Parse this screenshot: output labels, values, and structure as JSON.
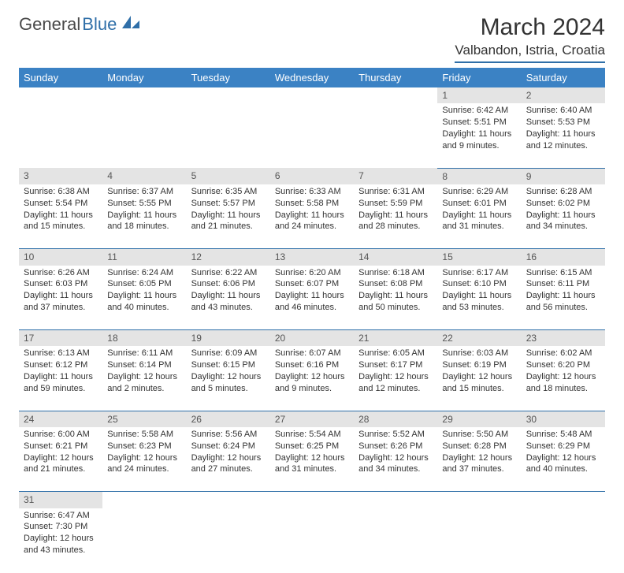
{
  "brand": {
    "part1": "General",
    "part2": "Blue"
  },
  "title": "March 2024",
  "location": "Valbandon, Istria, Croatia",
  "colors": {
    "header_bg": "#3b82c4",
    "header_text": "#ffffff",
    "daynum_bg": "#e4e4e4",
    "divider": "#2f6fa8",
    "body_text": "#333333",
    "brand_blue": "#2f6fa8"
  },
  "table": {
    "columns": [
      "Sunday",
      "Monday",
      "Tuesday",
      "Wednesday",
      "Thursday",
      "Friday",
      "Saturday"
    ],
    "weeks": [
      [
        null,
        null,
        null,
        null,
        null,
        {
          "n": "1",
          "sr": "Sunrise: 6:42 AM",
          "ss": "Sunset: 5:51 PM",
          "d1": "Daylight: 11 hours",
          "d2": "and 9 minutes."
        },
        {
          "n": "2",
          "sr": "Sunrise: 6:40 AM",
          "ss": "Sunset: 5:53 PM",
          "d1": "Daylight: 11 hours",
          "d2": "and 12 minutes."
        }
      ],
      [
        {
          "n": "3",
          "sr": "Sunrise: 6:38 AM",
          "ss": "Sunset: 5:54 PM",
          "d1": "Daylight: 11 hours",
          "d2": "and 15 minutes."
        },
        {
          "n": "4",
          "sr": "Sunrise: 6:37 AM",
          "ss": "Sunset: 5:55 PM",
          "d1": "Daylight: 11 hours",
          "d2": "and 18 minutes."
        },
        {
          "n": "5",
          "sr": "Sunrise: 6:35 AM",
          "ss": "Sunset: 5:57 PM",
          "d1": "Daylight: 11 hours",
          "d2": "and 21 minutes."
        },
        {
          "n": "6",
          "sr": "Sunrise: 6:33 AM",
          "ss": "Sunset: 5:58 PM",
          "d1": "Daylight: 11 hours",
          "d2": "and 24 minutes."
        },
        {
          "n": "7",
          "sr": "Sunrise: 6:31 AM",
          "ss": "Sunset: 5:59 PM",
          "d1": "Daylight: 11 hours",
          "d2": "and 28 minutes."
        },
        {
          "n": "8",
          "sr": "Sunrise: 6:29 AM",
          "ss": "Sunset: 6:01 PM",
          "d1": "Daylight: 11 hours",
          "d2": "and 31 minutes."
        },
        {
          "n": "9",
          "sr": "Sunrise: 6:28 AM",
          "ss": "Sunset: 6:02 PM",
          "d1": "Daylight: 11 hours",
          "d2": "and 34 minutes."
        }
      ],
      [
        {
          "n": "10",
          "sr": "Sunrise: 6:26 AM",
          "ss": "Sunset: 6:03 PM",
          "d1": "Daylight: 11 hours",
          "d2": "and 37 minutes."
        },
        {
          "n": "11",
          "sr": "Sunrise: 6:24 AM",
          "ss": "Sunset: 6:05 PM",
          "d1": "Daylight: 11 hours",
          "d2": "and 40 minutes."
        },
        {
          "n": "12",
          "sr": "Sunrise: 6:22 AM",
          "ss": "Sunset: 6:06 PM",
          "d1": "Daylight: 11 hours",
          "d2": "and 43 minutes."
        },
        {
          "n": "13",
          "sr": "Sunrise: 6:20 AM",
          "ss": "Sunset: 6:07 PM",
          "d1": "Daylight: 11 hours",
          "d2": "and 46 minutes."
        },
        {
          "n": "14",
          "sr": "Sunrise: 6:18 AM",
          "ss": "Sunset: 6:08 PM",
          "d1": "Daylight: 11 hours",
          "d2": "and 50 minutes."
        },
        {
          "n": "15",
          "sr": "Sunrise: 6:17 AM",
          "ss": "Sunset: 6:10 PM",
          "d1": "Daylight: 11 hours",
          "d2": "and 53 minutes."
        },
        {
          "n": "16",
          "sr": "Sunrise: 6:15 AM",
          "ss": "Sunset: 6:11 PM",
          "d1": "Daylight: 11 hours",
          "d2": "and 56 minutes."
        }
      ],
      [
        {
          "n": "17",
          "sr": "Sunrise: 6:13 AM",
          "ss": "Sunset: 6:12 PM",
          "d1": "Daylight: 11 hours",
          "d2": "and 59 minutes."
        },
        {
          "n": "18",
          "sr": "Sunrise: 6:11 AM",
          "ss": "Sunset: 6:14 PM",
          "d1": "Daylight: 12 hours",
          "d2": "and 2 minutes."
        },
        {
          "n": "19",
          "sr": "Sunrise: 6:09 AM",
          "ss": "Sunset: 6:15 PM",
          "d1": "Daylight: 12 hours",
          "d2": "and 5 minutes."
        },
        {
          "n": "20",
          "sr": "Sunrise: 6:07 AM",
          "ss": "Sunset: 6:16 PM",
          "d1": "Daylight: 12 hours",
          "d2": "and 9 minutes."
        },
        {
          "n": "21",
          "sr": "Sunrise: 6:05 AM",
          "ss": "Sunset: 6:17 PM",
          "d1": "Daylight: 12 hours",
          "d2": "and 12 minutes."
        },
        {
          "n": "22",
          "sr": "Sunrise: 6:03 AM",
          "ss": "Sunset: 6:19 PM",
          "d1": "Daylight: 12 hours",
          "d2": "and 15 minutes."
        },
        {
          "n": "23",
          "sr": "Sunrise: 6:02 AM",
          "ss": "Sunset: 6:20 PM",
          "d1": "Daylight: 12 hours",
          "d2": "and 18 minutes."
        }
      ],
      [
        {
          "n": "24",
          "sr": "Sunrise: 6:00 AM",
          "ss": "Sunset: 6:21 PM",
          "d1": "Daylight: 12 hours",
          "d2": "and 21 minutes."
        },
        {
          "n": "25",
          "sr": "Sunrise: 5:58 AM",
          "ss": "Sunset: 6:23 PM",
          "d1": "Daylight: 12 hours",
          "d2": "and 24 minutes."
        },
        {
          "n": "26",
          "sr": "Sunrise: 5:56 AM",
          "ss": "Sunset: 6:24 PM",
          "d1": "Daylight: 12 hours",
          "d2": "and 27 minutes."
        },
        {
          "n": "27",
          "sr": "Sunrise: 5:54 AM",
          "ss": "Sunset: 6:25 PM",
          "d1": "Daylight: 12 hours",
          "d2": "and 31 minutes."
        },
        {
          "n": "28",
          "sr": "Sunrise: 5:52 AM",
          "ss": "Sunset: 6:26 PM",
          "d1": "Daylight: 12 hours",
          "d2": "and 34 minutes."
        },
        {
          "n": "29",
          "sr": "Sunrise: 5:50 AM",
          "ss": "Sunset: 6:28 PM",
          "d1": "Daylight: 12 hours",
          "d2": "and 37 minutes."
        },
        {
          "n": "30",
          "sr": "Sunrise: 5:48 AM",
          "ss": "Sunset: 6:29 PM",
          "d1": "Daylight: 12 hours",
          "d2": "and 40 minutes."
        }
      ],
      [
        {
          "n": "31",
          "sr": "Sunrise: 6:47 AM",
          "ss": "Sunset: 7:30 PM",
          "d1": "Daylight: 12 hours",
          "d2": "and 43 minutes."
        },
        null,
        null,
        null,
        null,
        null,
        null
      ]
    ]
  }
}
